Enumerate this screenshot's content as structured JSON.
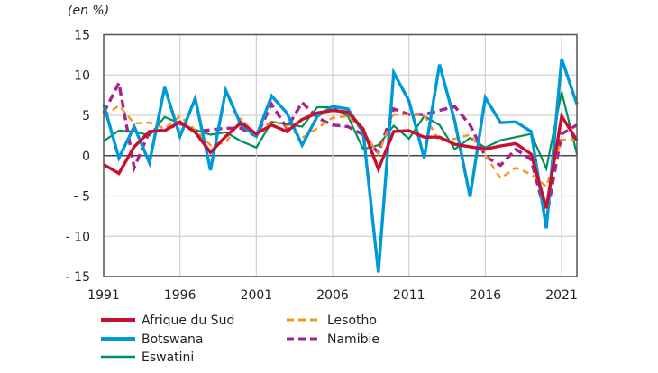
{
  "chart_data": {
    "type": "line",
    "title": "",
    "ylabel": "(en %)",
    "xlabel": "",
    "ylim": [
      -15,
      15
    ],
    "yticks": [
      15,
      10,
      5,
      0,
      -5,
      -10,
      -15
    ],
    "ytick_labels": [
      "15",
      "10",
      "5",
      "0",
      "- 5",
      "- 10",
      "- 15"
    ],
    "xticks": [
      1991,
      1996,
      2001,
      2006,
      2011,
      2016,
      2021
    ],
    "xtick_labels": [
      "1991",
      "1996",
      "2001",
      "2006",
      "2011",
      "2016",
      "2021"
    ],
    "xlim": [
      1991,
      2022
    ],
    "grid": true,
    "legend_position": "bottom",
    "x": [
      1991,
      1992,
      1993,
      1994,
      1995,
      1996,
      1997,
      1998,
      1999,
      2000,
      2001,
      2002,
      2003,
      2004,
      2005,
      2006,
      2007,
      2008,
      2009,
      2010,
      2011,
      2012,
      2013,
      2014,
      2015,
      2016,
      2017,
      2018,
      2019,
      2020,
      2021,
      2022
    ],
    "series": [
      {
        "name": "Afrique du Sud",
        "color": "#c8102e",
        "dashed": false,
        "values": [
          -1.1,
          -2.2,
          1.1,
          3.0,
          3.1,
          4.2,
          2.9,
          0.4,
          2.4,
          4.1,
          2.7,
          3.8,
          3.0,
          4.5,
          5.3,
          5.6,
          5.4,
          3.3,
          -1.7,
          3.0,
          3.1,
          2.3,
          2.3,
          1.4,
          1.1,
          0.8,
          1.2,
          1.5,
          0.2,
          -6.5,
          4.9,
          1.9
        ]
      },
      {
        "name": "Lesotho",
        "color": "#f7941d",
        "dashed": true,
        "values": [
          4.9,
          6.2,
          4.0,
          4.1,
          3.4,
          4.9,
          3.2,
          1.3,
          1.6,
          4.6,
          2.5,
          4.4,
          3.6,
          2.2,
          3.4,
          4.7,
          4.9,
          3.0,
          0.2,
          5.1,
          5.1,
          5.0,
          1.8,
          2.1,
          2.6,
          0.1,
          -2.8,
          -1.5,
          -2.3,
          -3.8,
          2.0,
          2.0
        ]
      },
      {
        "name": "Botswana",
        "color": "#0099d8",
        "dashed": false,
        "values": [
          6.4,
          -0.3,
          3.6,
          -0.9,
          8.5,
          2.4,
          7.1,
          -1.8,
          8.1,
          3.8,
          2.4,
          7.4,
          5.3,
          1.3,
          4.9,
          6.1,
          5.8,
          2.9,
          -14.5,
          10.3,
          6.8,
          -0.3,
          11.3,
          4.3,
          -5.1,
          7.2,
          4.1,
          4.2,
          3.0,
          -9.0,
          12.0,
          6.4
        ]
      },
      {
        "name": "Namibie",
        "color": "#a6238e",
        "dashed": true,
        "values": [
          5.3,
          9.0,
          -1.5,
          3.0,
          3.2,
          4.0,
          3.0,
          3.2,
          3.4,
          3.4,
          2.4,
          6.4,
          3.4,
          6.6,
          4.7,
          3.8,
          3.6,
          2.6,
          0.3,
          5.8,
          5.1,
          5.1,
          5.6,
          6.1,
          3.8,
          -0.1,
          -1.2,
          0.8,
          -0.5,
          -7.7,
          2.7,
          3.8
        ]
      },
      {
        "name": "Eswatini",
        "color": "#00905a",
        "dashed": false,
        "values": [
          1.8,
          3.1,
          3.0,
          2.5,
          4.8,
          4.0,
          3.2,
          2.6,
          2.9,
          1.8,
          1.0,
          4.2,
          3.9,
          3.6,
          6.0,
          6.0,
          4.9,
          0.8,
          1.3,
          3.7,
          2.1,
          4.9,
          3.8,
          0.8,
          2.2,
          1.0,
          1.9,
          2.3,
          2.7,
          -1.6,
          7.9,
          0.2
        ]
      }
    ]
  }
}
